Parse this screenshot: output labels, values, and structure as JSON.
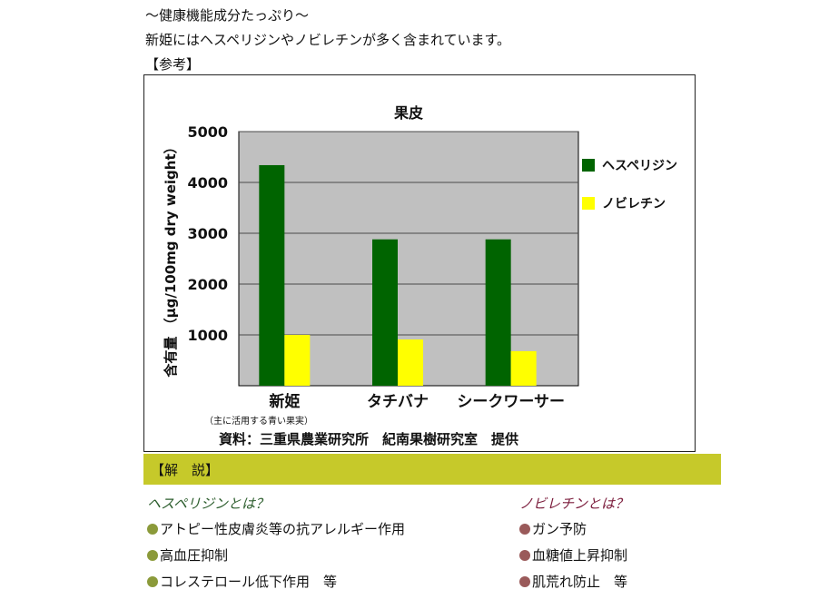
{
  "intro": {
    "heading": "～健康機能成分たっぷり～",
    "sentence": "新姫にはヘスペリジンやノビレチンが多く含まれています。",
    "ref_label": "【参考】"
  },
  "chart_data": {
    "type": "bar",
    "title": "果皮",
    "ylabel": "含有量 （μg/100mg dry weight）",
    "categories": [
      "新姫",
      "タチバナ",
      "シークワーサー"
    ],
    "series": [
      {
        "name": "ヘスペリジン",
        "color": "#006400",
        "values": [
          4340,
          2880,
          2880
        ]
      },
      {
        "name": "ノビレチン",
        "color": "#ffff00",
        "values": [
          1000,
          910,
          680
        ]
      }
    ],
    "ylim": [
      0,
      5000
    ],
    "yticks": [
      1000,
      2000,
      3000,
      4000,
      5000
    ],
    "grid": true,
    "legend": "right",
    "plot_bg": "#c0c0c0",
    "note": "（主に活用する青い果実）",
    "source": "資料：三重県農業研究所　紀南果樹研究室　提供"
  },
  "explanation": {
    "header": "【解　説】",
    "header_color": "#c6c92a",
    "left": {
      "title": "ヘスペリジンとは？",
      "title_color": "#2d5e2e",
      "dot_color": "#8b9a3a",
      "items": [
        "アトピー性皮膚炎等の抗アレルギー作用",
        "高血圧抑制",
        "コレステロール低下作用　等"
      ]
    },
    "right": {
      "title": "ノビレチンとは？",
      "title_color": "#7a1a3a",
      "dot_color": "#9a5a5a",
      "items": [
        "ガン予防",
        "血糖値上昇抑制",
        "肌荒れ防止　等"
      ]
    }
  }
}
